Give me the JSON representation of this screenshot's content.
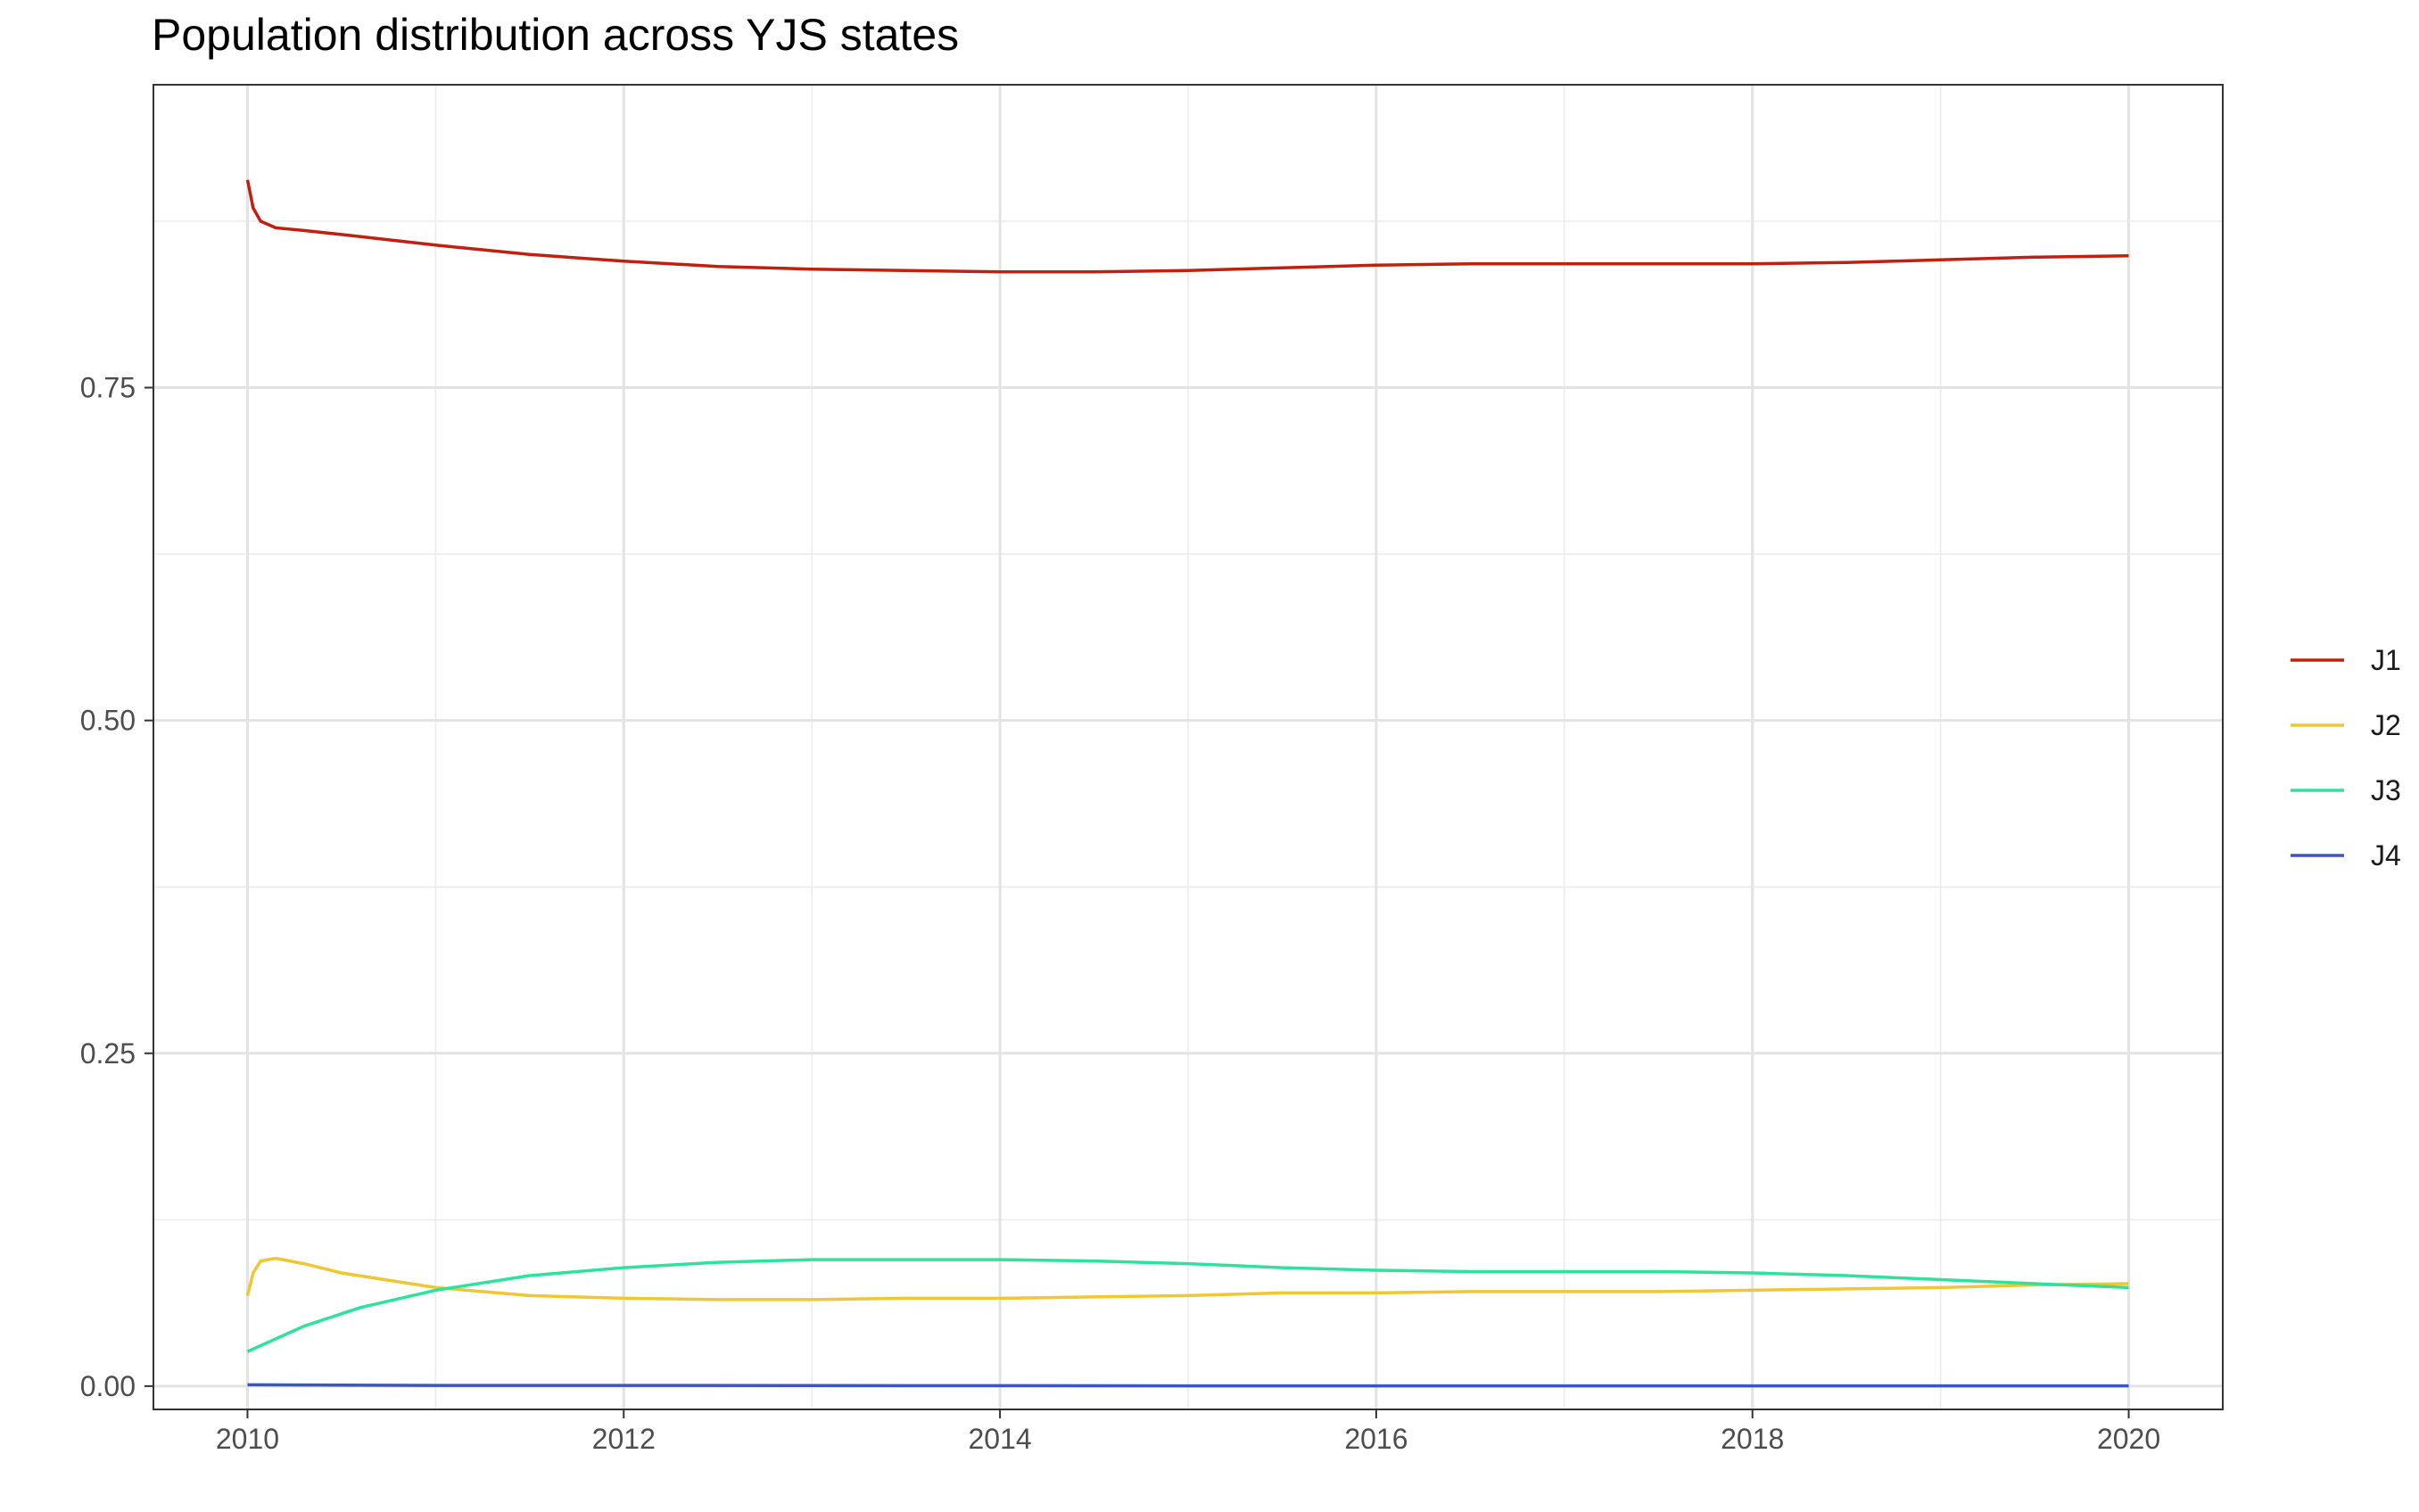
{
  "chart_data": {
    "type": "line",
    "title": "Population distribution across YJS states",
    "xlabel": "",
    "ylabel": "",
    "xlim": [
      2009.5,
      2020.5
    ],
    "ylim": [
      -0.0175,
      0.9775
    ],
    "x_ticks": [
      2010,
      2012,
      2014,
      2016,
      2018,
      2020
    ],
    "x_tick_labels": [
      "2010",
      "2012",
      "2014",
      "2016",
      "2018",
      "2020"
    ],
    "y_ticks": [
      0.0,
      0.25,
      0.5,
      0.75
    ],
    "y_tick_labels": [
      "0.00",
      "0.25",
      "0.50",
      "0.75"
    ],
    "grid": true,
    "legend_position": "right",
    "series": [
      {
        "name": "J1",
        "color": "#C0200F",
        "x": [
          2010,
          2010.03,
          2010.07,
          2010.15,
          2010.3,
          2010.5,
          2011,
          2011.5,
          2012,
          2012.5,
          2013,
          2013.5,
          2014,
          2014.5,
          2015,
          2015.5,
          2016,
          2016.5,
          2017,
          2017.5,
          2018,
          2018.5,
          2019,
          2019.5,
          2020
        ],
        "y": [
          0.906,
          0.885,
          0.875,
          0.87,
          0.868,
          0.865,
          0.857,
          0.85,
          0.845,
          0.841,
          0.839,
          0.838,
          0.837,
          0.837,
          0.838,
          0.84,
          0.842,
          0.843,
          0.843,
          0.843,
          0.843,
          0.844,
          0.846,
          0.848,
          0.849
        ]
      },
      {
        "name": "J2",
        "color": "#EFC633",
        "x": [
          2010,
          2010.03,
          2010.07,
          2010.15,
          2010.3,
          2010.5,
          2011,
          2011.5,
          2012,
          2012.5,
          2013,
          2013.5,
          2014,
          2014.5,
          2015,
          2015.5,
          2016,
          2016.5,
          2017,
          2017.5,
          2018,
          2018.5,
          2019,
          2019.5,
          2020
        ],
        "y": [
          0.068,
          0.085,
          0.094,
          0.096,
          0.092,
          0.085,
          0.074,
          0.068,
          0.066,
          0.065,
          0.065,
          0.066,
          0.066,
          0.067,
          0.068,
          0.07,
          0.07,
          0.071,
          0.071,
          0.071,
          0.072,
          0.073,
          0.074,
          0.076,
          0.077
        ]
      },
      {
        "name": "J3",
        "color": "#2EE29B",
        "x": [
          2010,
          2010.3,
          2010.6,
          2011,
          2011.5,
          2012,
          2012.5,
          2013,
          2013.5,
          2014,
          2014.5,
          2015,
          2015.5,
          2016,
          2016.5,
          2017,
          2017.5,
          2018,
          2018.5,
          2019,
          2019.5,
          2020
        ],
        "y": [
          0.026,
          0.045,
          0.059,
          0.072,
          0.083,
          0.089,
          0.093,
          0.095,
          0.095,
          0.095,
          0.094,
          0.092,
          0.089,
          0.087,
          0.086,
          0.086,
          0.086,
          0.085,
          0.083,
          0.08,
          0.077,
          0.074
        ]
      },
      {
        "name": "J4",
        "color": "#3A55C9",
        "x": [
          2010,
          2011,
          2012,
          2013,
          2014,
          2015,
          2016,
          2017,
          2018,
          2019,
          2020
        ],
        "y": [
          0.001,
          0.0005,
          0.0005,
          0.0004,
          0.0003,
          0.0002,
          0.0002,
          0.0002,
          0.0002,
          0.0002,
          0.0002
        ]
      }
    ]
  }
}
